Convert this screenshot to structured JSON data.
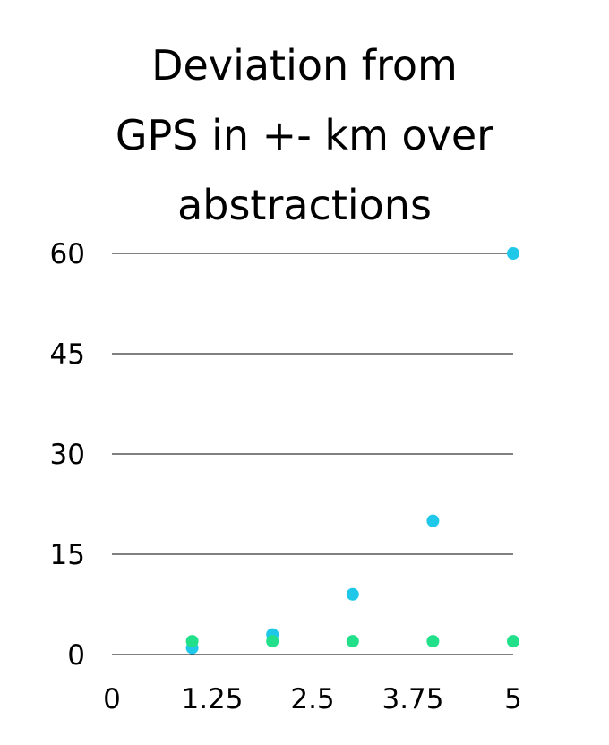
{
  "chart_data": {
    "type": "scatter",
    "title_lines": [
      "Deviation from",
      "GPS in +- km over",
      "abstractions"
    ],
    "xlabel": "",
    "ylabel": "",
    "xlim": [
      0,
      5
    ],
    "ylim": [
      0,
      60
    ],
    "x_ticks": [
      "0",
      "1.25",
      "2.5",
      "3.75",
      "5"
    ],
    "y_ticks": [
      "0",
      "15",
      "30",
      "45",
      "60"
    ],
    "grid": true,
    "series": [
      {
        "color": "#1fc8e8",
        "points": [
          [
            1,
            1
          ],
          [
            2,
            3
          ],
          [
            3,
            9
          ],
          [
            4,
            20
          ],
          [
            5,
            60
          ]
        ]
      },
      {
        "color": "#22e08a",
        "points": [
          [
            1,
            2
          ],
          [
            2,
            2
          ],
          [
            3,
            2
          ],
          [
            4,
            2
          ],
          [
            5,
            2
          ]
        ]
      }
    ]
  }
}
